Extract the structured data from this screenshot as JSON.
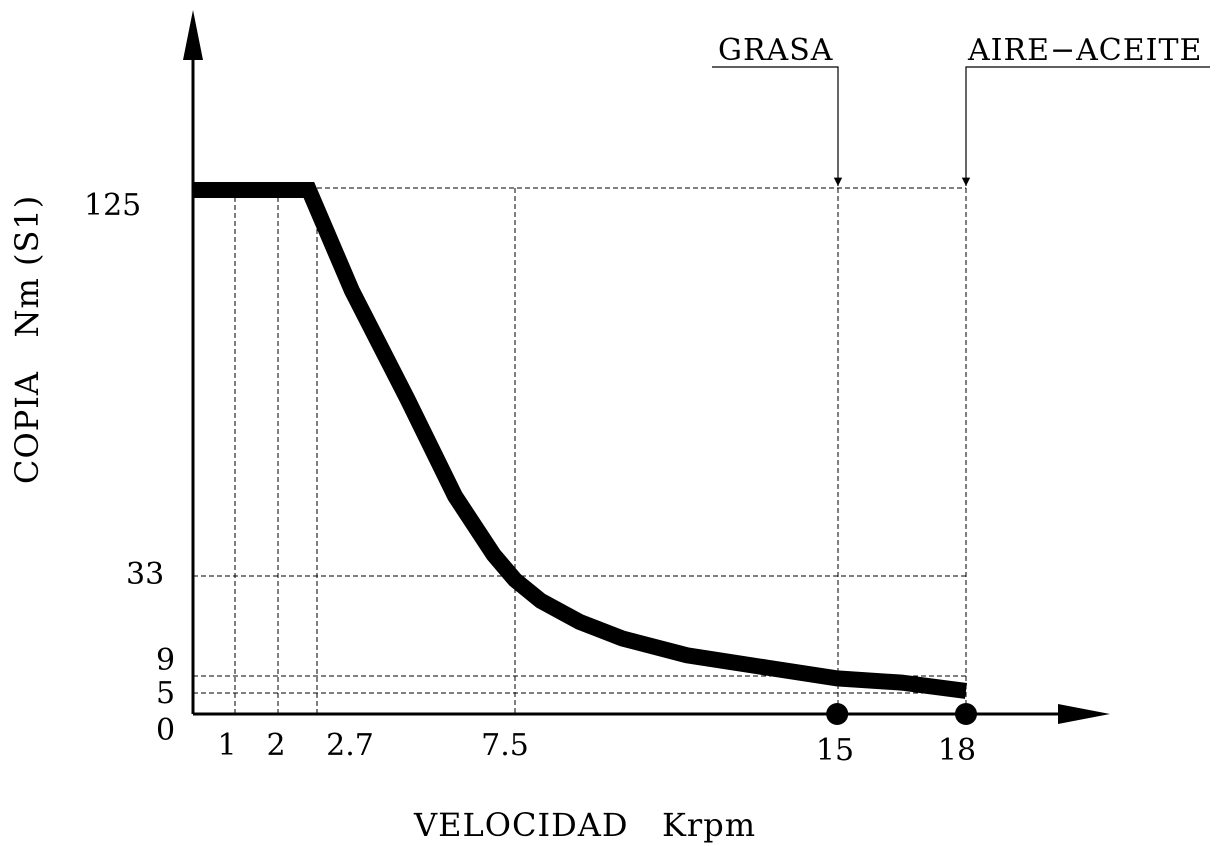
{
  "chart_data": {
    "type": "line",
    "title": "",
    "xlabel": "VELOCIDAD   Krpm",
    "ylabel": "COPIA   Nm (S1)",
    "x_ticks": [
      "1",
      "2",
      "2.7",
      "7.5",
      "15",
      "18"
    ],
    "y_ticks": [
      "0",
      "5",
      "9",
      "33",
      "125"
    ],
    "x_tick_values": [
      1,
      2,
      2.7,
      7.5,
      15,
      18
    ],
    "y_tick_values": [
      0,
      5,
      9,
      33,
      125
    ],
    "xlim": [
      0,
      21.3
    ],
    "ylim": [
      0,
      125
    ],
    "series": [
      {
        "x": [
          0,
          0.7,
          1.5,
          2.7,
          3.7,
          5.0,
          6.1,
          7.0,
          7.5,
          8.1,
          9.0,
          10.0,
          11.5,
          13.4,
          15.0,
          16.5,
          18.0
        ],
        "y": [
          125,
          125,
          125,
          125,
          101,
          75,
          52,
          38,
          32,
          27,
          22,
          18,
          14,
          11,
          8.5,
          7.5,
          5.5
        ]
      }
    ],
    "markers": [
      {
        "x": 15,
        "y": 0
      },
      {
        "x": 18,
        "y": 0
      }
    ],
    "annotations": [
      {
        "text": "GRASA",
        "x": 15
      },
      {
        "text": "AIRE−ACEITE",
        "x": 18
      }
    ],
    "grid": "dashed reference lines at tick values"
  }
}
